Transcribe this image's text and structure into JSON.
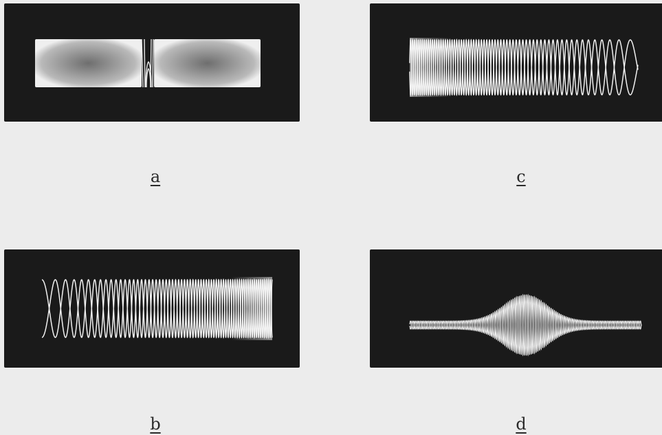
{
  "figure": {
    "panels": [
      {
        "id": "a",
        "label": "a"
      },
      {
        "id": "b",
        "label": "b"
      },
      {
        "id": "c",
        "label": "c"
      },
      {
        "id": "d",
        "label": "d"
      }
    ],
    "colors": {
      "background": "#ececec",
      "screen": "#1a1a1a",
      "trace": "#f2f2f2",
      "label": "#2a2a2a"
    }
  }
}
